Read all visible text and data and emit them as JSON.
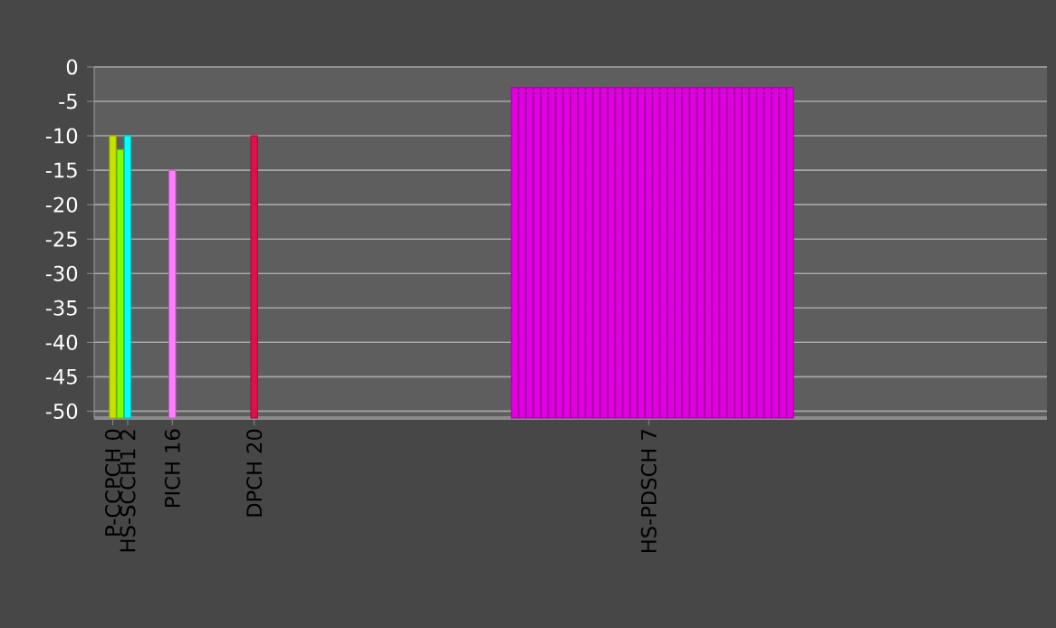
{
  "chart_data": {
    "type": "bar",
    "categories": [
      null,
      null,
      "P-CCPCH  0",
      null,
      "HS-SCCH1  2",
      null,
      null,
      null,
      null,
      null,
      "PICH  16",
      null,
      null,
      null,
      null,
      null,
      null,
      null,
      null,
      null,
      null,
      "DPCH  20",
      null,
      null,
      null,
      null,
      null,
      null,
      null,
      null,
      null,
      null,
      null,
      null,
      null,
      null,
      null,
      null,
      null,
      null,
      null,
      null,
      null,
      null,
      null,
      null,
      null,
      null,
      null,
      null,
      null,
      null,
      null,
      null,
      null,
      null,
      null,
      null,
      null,
      null,
      null,
      null,
      null,
      null,
      null,
      null,
      null,
      null,
      null,
      null,
      null,
      null,
      null,
      null,
      "HS-PDSCH  7",
      null,
      null,
      null,
      null,
      null,
      null,
      null,
      null,
      null,
      null,
      null,
      null,
      null,
      null,
      null,
      null,
      null,
      null,
      null,
      null,
      null,
      null,
      null,
      null,
      null,
      null,
      null,
      null,
      null,
      null,
      null,
      null,
      null,
      null,
      null,
      null,
      null,
      null,
      null,
      null,
      null,
      null,
      null,
      null,
      null,
      null,
      null,
      null,
      null,
      null,
      null,
      null,
      null
    ],
    "base": [
      null,
      null,
      -51,
      -51,
      -51,
      null,
      null,
      null,
      null,
      null,
      -51,
      null,
      null,
      null,
      null,
      null,
      null,
      null,
      null,
      null,
      null,
      -51,
      null,
      null,
      null,
      null,
      null,
      null,
      null,
      null,
      null,
      null,
      null,
      null,
      null,
      null,
      null,
      null,
      null,
      null,
      null,
      null,
      null,
      null,
      null,
      null,
      null,
      null,
      null,
      null,
      null,
      null,
      null,
      null,
      null,
      null,
      -51,
      -51,
      -51,
      -51,
      -51,
      -51,
      -51,
      -51,
      -51,
      -51,
      -51,
      -51,
      -51,
      -51,
      -51,
      -51,
      -51,
      -51,
      -51,
      -51,
      -51,
      -51,
      -51,
      -51,
      -51,
      -51,
      -51,
      -51,
      -51,
      -51,
      -51,
      -51,
      -51,
      -51,
      -51,
      -51,
      -51,
      -51,
      null,
      null,
      null,
      null,
      null,
      null,
      null,
      null,
      null,
      null,
      null,
      null,
      null,
      null,
      null,
      null,
      null,
      null,
      null,
      null,
      null,
      null,
      null,
      null,
      null,
      null,
      null,
      null,
      null,
      null,
      null,
      null,
      null,
      null
    ],
    "values": [
      null,
      null,
      41,
      39,
      41,
      null,
      null,
      null,
      null,
      null,
      36,
      null,
      null,
      null,
      null,
      null,
      null,
      null,
      null,
      null,
      null,
      41,
      null,
      null,
      null,
      null,
      null,
      null,
      null,
      null,
      null,
      null,
      null,
      null,
      null,
      null,
      null,
      null,
      null,
      null,
      null,
      null,
      null,
      null,
      null,
      null,
      null,
      null,
      null,
      null,
      null,
      null,
      null,
      null,
      null,
      null,
      48,
      48,
      48,
      48,
      48,
      48,
      48,
      48,
      48,
      48,
      48,
      48,
      48,
      48,
      48,
      48,
      48,
      48,
      48,
      48,
      48,
      48,
      48,
      48,
      48,
      48,
      48,
      48,
      48,
      48,
      48,
      48,
      48,
      48,
      48,
      48,
      48,
      48,
      null,
      null,
      null,
      null,
      null,
      null,
      null,
      null,
      null,
      null,
      null,
      null,
      null,
      null,
      null,
      null,
      null,
      null,
      null,
      null,
      null,
      null,
      null,
      null,
      null,
      null,
      null,
      null,
      null,
      null,
      null,
      null,
      null,
      null
    ],
    "colors": [
      null,
      null,
      "#c8e000",
      "#80ff00",
      "#00ffff",
      null,
      null,
      null,
      null,
      null,
      "#ff80ff",
      null,
      null,
      null,
      null,
      null,
      null,
      null,
      null,
      null,
      null,
      "#e0104a",
      null,
      null,
      null,
      null,
      null,
      null,
      null,
      null,
      null,
      null,
      null,
      null,
      null,
      null,
      null,
      null,
      null,
      null,
      null,
      null,
      null,
      null,
      null,
      null,
      null,
      null,
      null,
      null,
      null,
      null,
      null,
      null,
      null,
      null,
      "#e000e0",
      "#e000e0",
      "#e000e0",
      "#e000e0",
      "#e000e0",
      "#e000e0",
      "#e000e0",
      "#e000e0",
      "#e000e0",
      "#e000e0",
      "#e000e0",
      "#e000e0",
      "#e000e0",
      "#e000e0",
      "#e000e0",
      "#e000e0",
      "#e000e0",
      "#e000e0",
      "#e000e0",
      "#e000e0",
      "#e000e0",
      "#e000e0",
      "#e000e0",
      "#e000e0",
      "#e000e0",
      "#e000e0",
      "#e000e0",
      "#e000e0",
      "#e000e0",
      "#e000e0",
      "#e000e0",
      "#e000e0",
      "#e000e0",
      "#e000e0",
      "#e000e0",
      "#e000e0",
      "#e000e0",
      "#e000e0",
      null,
      null,
      null,
      null,
      null,
      null,
      null,
      null,
      null,
      null,
      null,
      null,
      null,
      null,
      null,
      null,
      null,
      null,
      null,
      null,
      null,
      null,
      null,
      null,
      null,
      null,
      null,
      null,
      null,
      null,
      null,
      null,
      null,
      null
    ],
    "ylim": [
      -51,
      0
    ],
    "yticks": [
      0,
      -5,
      -10,
      -15,
      -20,
      -25,
      -30,
      -35,
      -40,
      -45,
      -50
    ],
    "grid": "y"
  }
}
